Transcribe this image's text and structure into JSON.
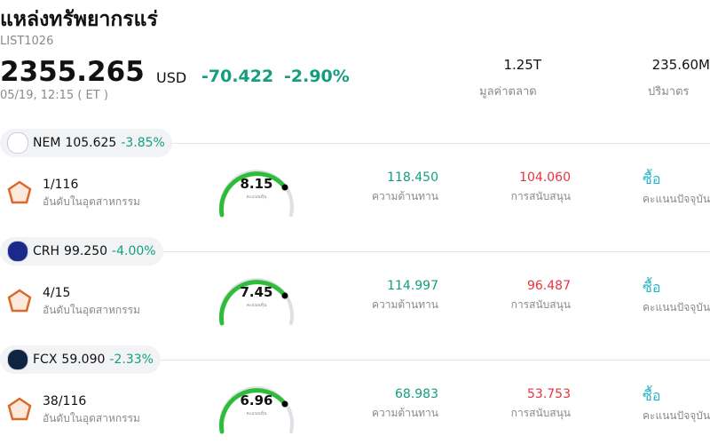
{
  "header": {
    "title": "แหล่งทรัพยากรแร่",
    "code": "LIST1026",
    "price": "2355.265",
    "currency": "USD",
    "change": "-70.422",
    "change_pct": "-2.90%",
    "time": "05/19, 12:15 ( ET )"
  },
  "stats": [
    {
      "value": "1.25T",
      "label": "มูลค่าตลาด"
    },
    {
      "value": "235.60M",
      "label": "ปริมาตร"
    }
  ],
  "stocks": [
    {
      "symbol": "NEM",
      "price": "105.625",
      "change_pct": "-3.85%",
      "rank": "1/116",
      "rank_label": "อันดับในอุตสาหกรรม",
      "score": "8.15",
      "score_label": "คะแนนหุ้น",
      "resistance": "118.450",
      "resistance_label": "ความต้านทาน",
      "support": "104.060",
      "support_label": "การสนับสนุน",
      "signal": "ซื้อ",
      "signal_label": "คะแนนปัจจุบัน"
    },
    {
      "symbol": "CRH",
      "price": "99.250",
      "change_pct": "-4.00%",
      "rank": "4/15",
      "rank_label": "อันดับในอุตสาหกรรม",
      "score": "7.45",
      "score_label": "คะแนนหุ้น",
      "resistance": "114.997",
      "resistance_label": "ความต้านทาน",
      "support": "96.487",
      "support_label": "การสนับสนุน",
      "signal": "ซื้อ",
      "signal_label": "คะแนนปัจจุบัน"
    },
    {
      "symbol": "FCX",
      "price": "59.090",
      "change_pct": "-2.33%",
      "rank": "38/116",
      "rank_label": "อันดับในอุตสาหกรรม",
      "score": "6.96",
      "score_label": "คะแนนหุ้น",
      "resistance": "68.983",
      "resistance_label": "ความต้านทาน",
      "support": "53.753",
      "support_label": "การสนับสนุน",
      "signal": "ซื้อ",
      "signal_label": "คะแนนปัจจุบัน"
    }
  ]
}
